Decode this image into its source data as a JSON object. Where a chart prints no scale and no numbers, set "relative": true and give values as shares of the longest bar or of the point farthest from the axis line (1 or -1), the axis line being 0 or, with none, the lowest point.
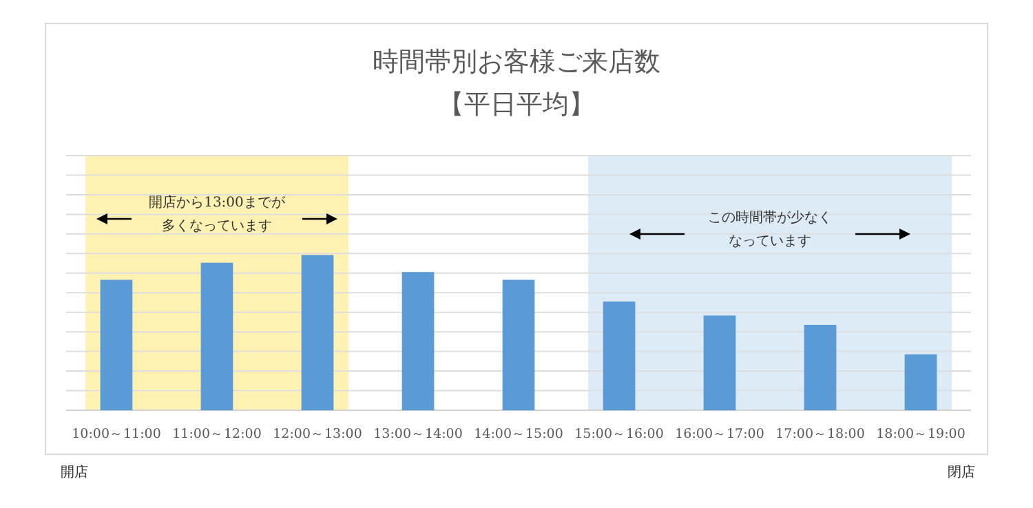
{
  "chart_data": {
    "type": "bar",
    "title": "時間帯別お客様ご来店数",
    "subtitle": "【平日平均】",
    "categories": [
      "10:00～11:00",
      "11:00～12:00",
      "12:00～13:00",
      "13:00～14:00",
      "14:00～15:00",
      "15:00～16:00",
      "16:00～17:00",
      "17:00～18:00",
      "18:00～19:00"
    ],
    "values": [
      0.84,
      0.95,
      1,
      0.89,
      0.84,
      0.7,
      0.61,
      0.55,
      0.36
    ],
    "color": "#5b9bd5",
    "relative": true,
    "grid": "y",
    "bands": [
      {
        "axis": "x",
        "from": "10:00～11:00",
        "to": "12:00～13:00",
        "color": "#fff2b3"
      },
      {
        "axis": "x",
        "from": "15:00～16:00",
        "to": "18:00～19:00",
        "color": "#ddebf7"
      }
    ],
    "annotations": [
      "開店から13:00までが",
      "多くなっています",
      "この時間帯が少なく",
      "なっています",
      "開店",
      "閉店"
    ]
  }
}
